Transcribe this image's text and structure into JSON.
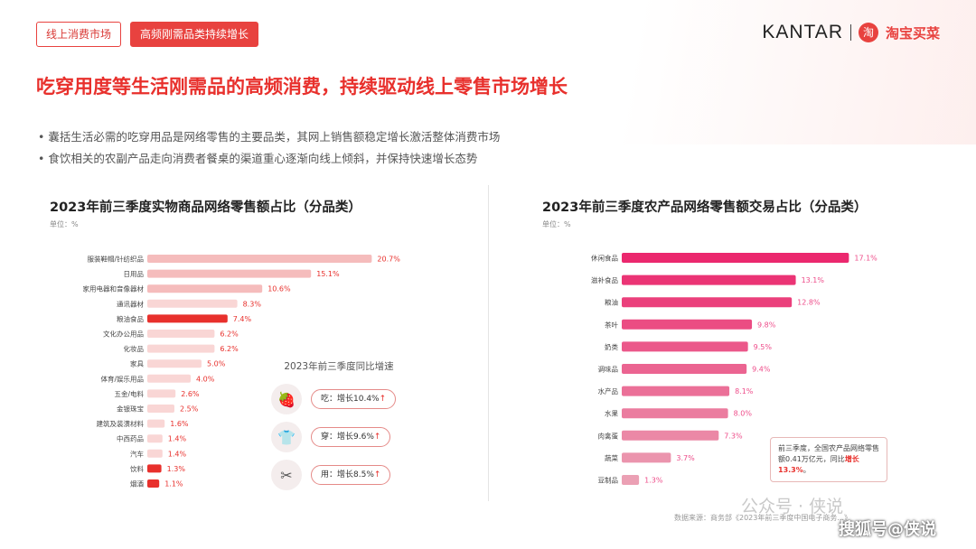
{
  "header": {
    "tag1": "线上消费市场",
    "tag2": "高频刚需品类持续增长",
    "brand_kantar": "KANTAR",
    "brand_taobao": "淘宝买菜",
    "brand_taobao_glyph": "淘"
  },
  "title": "吃穿用度等生活刚需品的高频消费，持续驱动线上零售市场增长",
  "bullets": [
    "• 囊括生活必需的吃穿用品是网络零售的主要品类，其网上销售额稳定增长激活整体消费市场",
    "• 食饮相关的农副产品走向消费者餐桌的渠道重心逐渐向线上倾斜，并保持快速增长态势"
  ],
  "yoy": {
    "title": "2023年前三季度同比增速",
    "items": [
      {
        "label": "吃：增长10.4%",
        "arrow": "↑",
        "icon": "food-icon",
        "glyph": "🍓"
      },
      {
        "label": "穿：增长9.6%",
        "arrow": "↑",
        "icon": "clothing-icon",
        "glyph": "👕"
      },
      {
        "label": "用：增长8.5%",
        "arrow": "↑",
        "icon": "tools-icon",
        "glyph": "✂"
      }
    ]
  },
  "note": {
    "line1": "前三季度，全国农产品网络零售额0.41万亿元，同比",
    "highlight": "增长13.3%",
    "line2": "。"
  },
  "source": "数据来源：商务部《2023年前三季度中国电子商务...》",
  "watermarks": {
    "w1": "公众号 · 侠说",
    "w2": "搜狐号@侠说"
  },
  "colors": {
    "accent": "#e8302c",
    "bar_light": "#f7cfcf",
    "bar_highlight": "#e8302c",
    "bar_pink": "#f24a86"
  },
  "chart_data": [
    {
      "type": "bar",
      "orientation": "horizontal",
      "title": "2023年前三季度实物商品网络零售额占比（分品类）",
      "unit": "单位：%",
      "categories": [
        "服装鞋帽/针纺织品",
        "日用品",
        "家用电器和音像器材",
        "通讯器材",
        "粮油食品",
        "文化办公用品",
        "化妆品",
        "家具",
        "体育/娱乐用品",
        "五金/电料",
        "金银珠宝",
        "建筑及装潢材料",
        "中西药品",
        "汽车",
        "饮料",
        "烟酒"
      ],
      "values": [
        20.7,
        15.1,
        10.6,
        8.3,
        7.4,
        6.2,
        6.2,
        5.0,
        4.0,
        2.6,
        2.5,
        1.6,
        1.4,
        1.4,
        1.3,
        1.1
      ],
      "value_labels": [
        "20.7%",
        "15.1%",
        "10.6%",
        "8.3%",
        "7.4%",
        "6.2%",
        "6.2%",
        "5.0%",
        "4.0%",
        "2.6%",
        "2.5%",
        "1.6%",
        "1.4%",
        "1.4%",
        "1.3%",
        "1.1%"
      ],
      "highlight": [
        "粮油食品",
        "饮料",
        "烟酒"
      ]
    },
    {
      "type": "bar",
      "orientation": "horizontal",
      "title": "2023年前三季度农产品网络零售额交易占比（分品类）",
      "unit": "单位：%",
      "categories": [
        "休闲食品",
        "滋补食品",
        "粮油",
        "茶叶",
        "奶类",
        "调味品",
        "水产品",
        "水果",
        "肉禽蛋",
        "蔬菜",
        "豆制品"
      ],
      "values": [
        17.1,
        13.1,
        12.8,
        9.8,
        9.5,
        9.4,
        8.1,
        8.0,
        7.3,
        3.7,
        1.3
      ],
      "value_labels": [
        "17.1%",
        "13.1%",
        "12.8%",
        "9.8%",
        "9.5%",
        "9.4%",
        "8.1%",
        "8.0%",
        "7.3%",
        "3.7%",
        "1.3%"
      ]
    }
  ]
}
